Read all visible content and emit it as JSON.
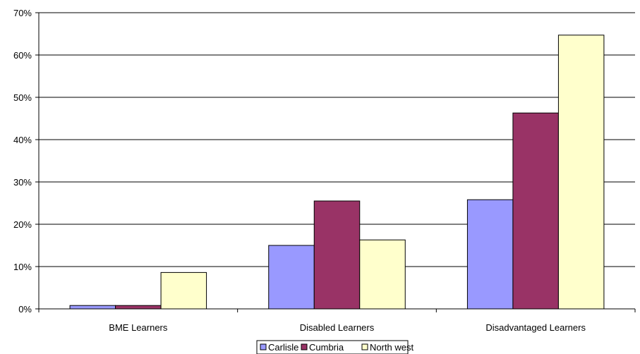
{
  "chart_data": {
    "type": "bar",
    "title": "",
    "xlabel": "",
    "ylabel": "",
    "categories": [
      "BME Learners",
      "Disabled Learners",
      "Disadvantaged Learners"
    ],
    "series": [
      {
        "name": "Carlisle",
        "color": "#9999ff",
        "values": [
          0.8,
          15.0,
          25.8
        ]
      },
      {
        "name": "Cumbria",
        "color": "#993366",
        "values": [
          0.8,
          25.5,
          46.3
        ]
      },
      {
        "name": "North west",
        "color": "#ffffcc",
        "values": [
          8.6,
          16.3,
          64.7
        ]
      }
    ],
    "ylim": [
      0,
      70
    ],
    "yticks": [
      0,
      10,
      20,
      30,
      40,
      50,
      60,
      70
    ],
    "ytick_labels": [
      "0%",
      "10%",
      "20%",
      "30%",
      "40%",
      "50%",
      "60%",
      "70%"
    ],
    "grid": "horizontal",
    "legend": "bottom-center"
  }
}
